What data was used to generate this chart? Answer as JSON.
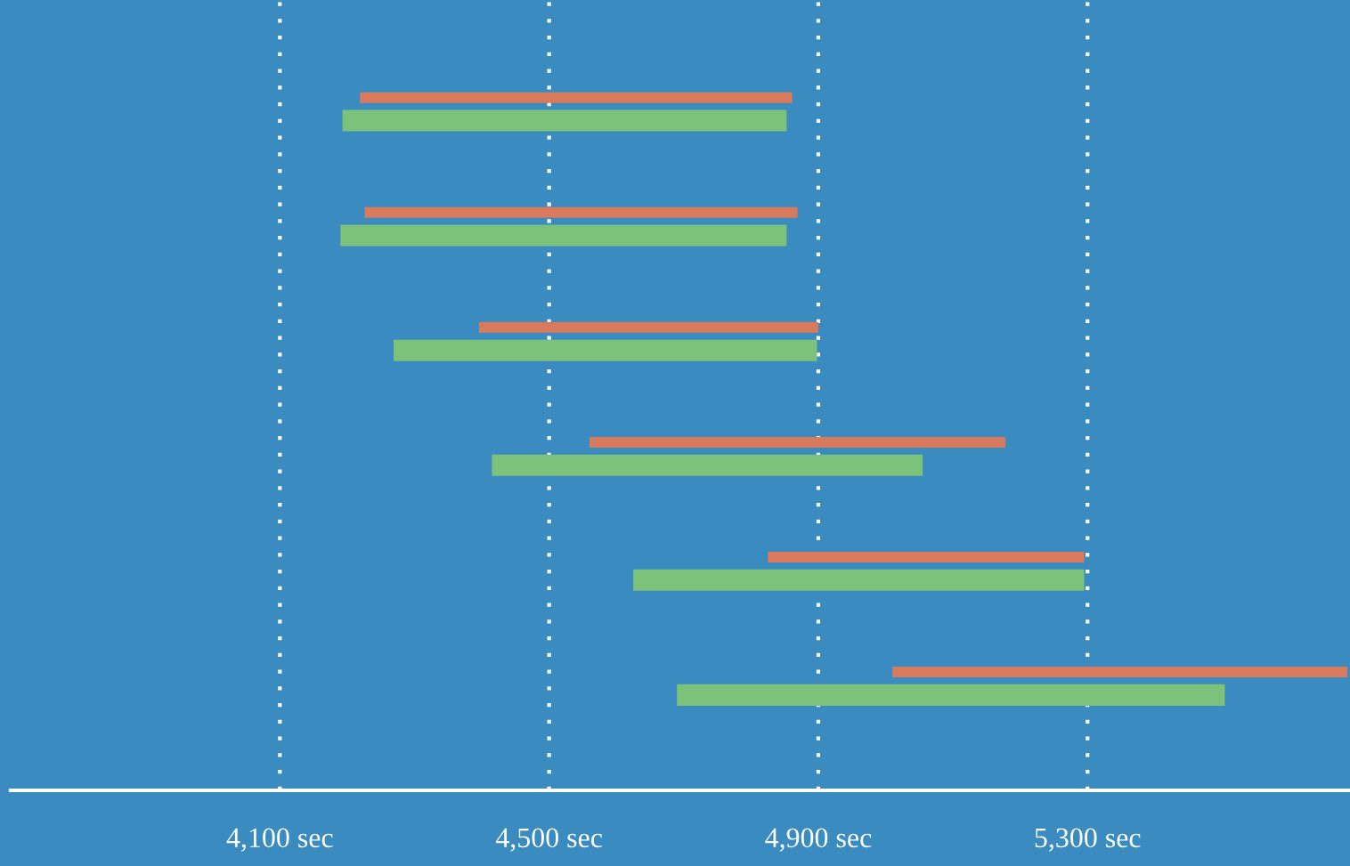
{
  "chart_data": {
    "type": "bar",
    "orientation": "horizontal",
    "categories": [
      null,
      null,
      null,
      null,
      null,
      null
    ],
    "series": [
      {
        "color": "#d97a5c",
        "base": [
          4219,
          4226,
          4396,
          4560,
          4825,
          5010
        ],
        "values": [
          642,
          643,
          504,
          618,
          470,
          676
        ]
      },
      {
        "color": "#7cc27a",
        "base": [
          4193,
          4190,
          4269,
          4415,
          4625,
          4690
        ],
        "values": [
          660,
          663,
          629,
          640,
          670,
          814
        ]
      }
    ],
    "xlim": [
      3700,
      5690
    ],
    "xticks": [
      {
        "value": 4100,
        "label": "4,100 sec"
      },
      {
        "value": 4500,
        "label": "4,500 sec"
      },
      {
        "value": 4900,
        "label": "4,900 sec"
      },
      {
        "value": 5300,
        "label": "5,300 sec"
      }
    ],
    "grid": "x",
    "tick_labels": "x"
  }
}
